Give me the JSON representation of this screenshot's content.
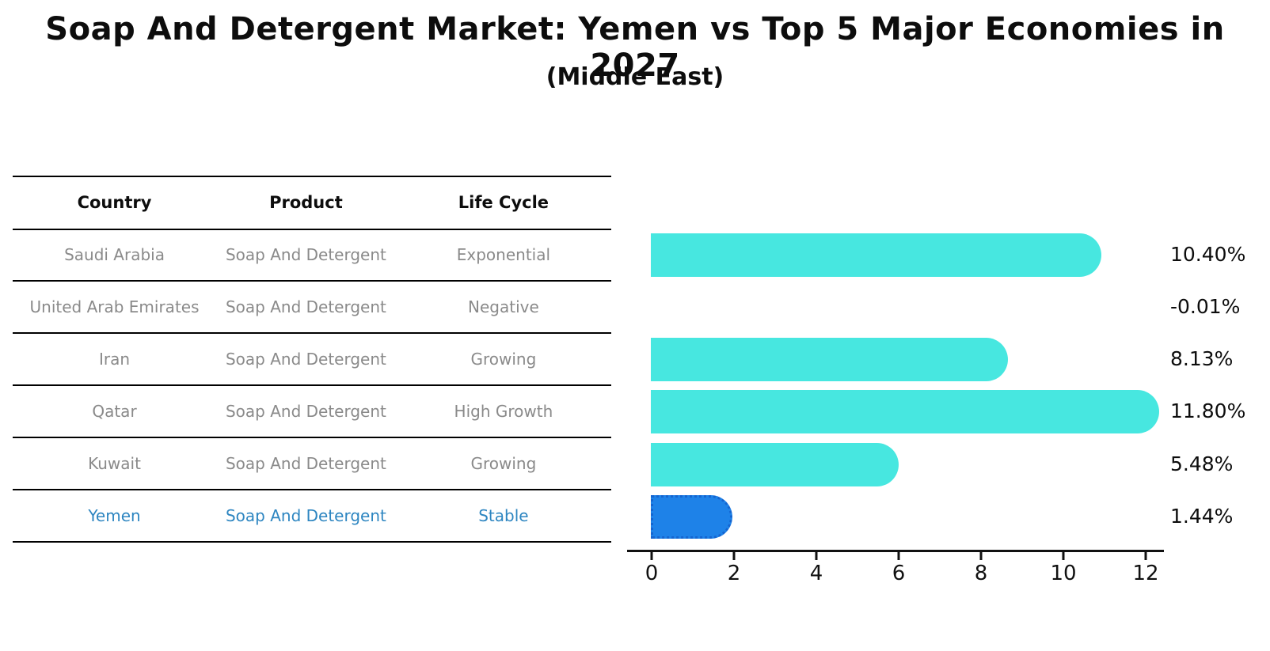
{
  "title": "Soap And Detergent Market: Yemen vs Top 5 Major Economies in 2027",
  "subtitle": "(Middle East)",
  "table": {
    "headers": [
      "Country",
      "Product",
      "Life Cycle"
    ],
    "rows": [
      {
        "country": "Saudi Arabia",
        "product": "Soap And Detergent",
        "life_cycle": "Exponential",
        "highlight": false
      },
      {
        "country": "United Arab Emirates",
        "product": "Soap And Detergent",
        "life_cycle": "Negative",
        "highlight": false
      },
      {
        "country": "Iran",
        "product": "Soap And Detergent",
        "life_cycle": "Growing",
        "highlight": false
      },
      {
        "country": "Qatar",
        "product": "Soap And Detergent",
        "life_cycle": "High Growth",
        "highlight": false
      },
      {
        "country": "Kuwait",
        "product": "Soap And Detergent",
        "life_cycle": "Growing",
        "highlight": false
      },
      {
        "country": "Yemen",
        "product": "Soap And Detergent",
        "life_cycle": "Stable",
        "highlight": true
      }
    ]
  },
  "chart_data": {
    "type": "bar",
    "orientation": "horizontal",
    "categories": [
      "Saudi Arabia",
      "United Arab Emirates",
      "Iran",
      "Qatar",
      "Kuwait",
      "Yemen"
    ],
    "values": [
      10.4,
      -0.01,
      8.13,
      11.8,
      5.48,
      1.44
    ],
    "value_labels": [
      "10.40%",
      "-0.01%",
      "8.13%",
      "11.80%",
      "5.48%",
      "1.44%"
    ],
    "x_ticks": [
      "0",
      "2",
      "4",
      "6",
      "8",
      "10",
      "12"
    ],
    "xlim": [
      0,
      12.5
    ],
    "grid": false,
    "legend": "none",
    "bar_color": "#47e7e0",
    "highlight_bar_color": "#1e82e8",
    "highlight_index": 5,
    "highlight_text_color": "#2e86c1",
    "title": "Soap And Detergent Market: Yemen vs Top 5 Major Economies in 2027",
    "subtitle": "(Middle East)",
    "xlabel": "",
    "ylabel": ""
  }
}
